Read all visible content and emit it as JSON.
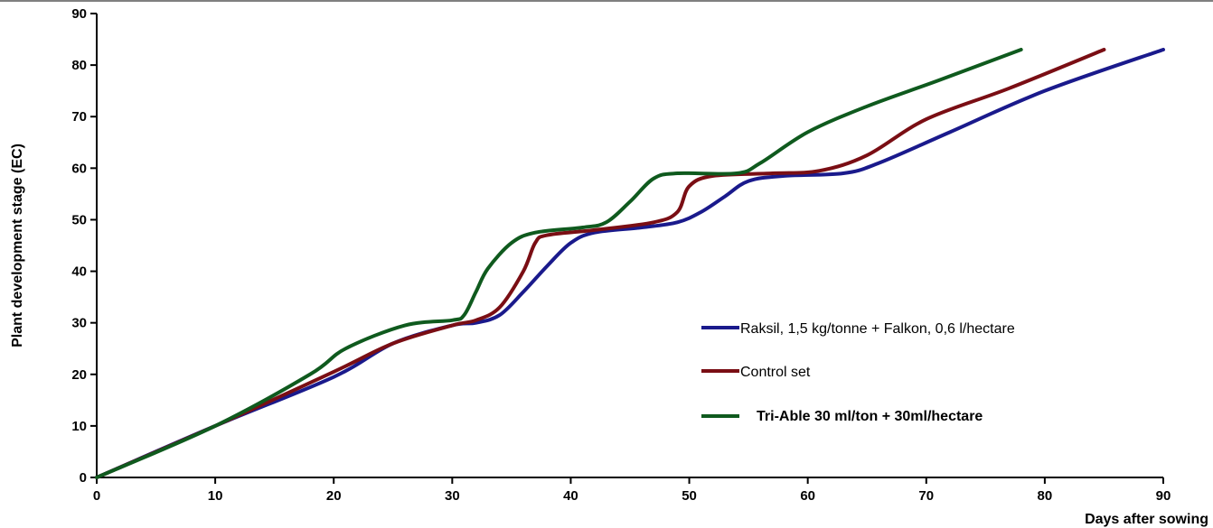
{
  "chart_data": {
    "type": "line",
    "xlabel": "Days after sowing",
    "ylabel": "Plant development stage (EC)",
    "xlim": [
      0,
      90
    ],
    "ylim": [
      0,
      90
    ],
    "x_ticks": [
      "0",
      "10",
      "20",
      "30",
      "40",
      "50",
      "60",
      "70",
      "80",
      "90"
    ],
    "y_ticks": [
      "0",
      "10",
      "20",
      "30",
      "40",
      "50",
      "60",
      "70",
      "80",
      "90"
    ],
    "grid": false,
    "legend_position": "right",
    "series": [
      {
        "name": "Raksil, 1,5 kg/tonne + Falkon, 0,6 l/hectare",
        "color": "#1a1a8c",
        "points": [
          [
            0,
            0
          ],
          [
            10,
            10
          ],
          [
            20,
            19.5
          ],
          [
            25,
            26
          ],
          [
            30,
            29.5
          ],
          [
            32,
            30
          ],
          [
            34,
            31.5
          ],
          [
            36,
            36
          ],
          [
            38,
            41
          ],
          [
            40,
            45.5
          ],
          [
            42,
            47.5
          ],
          [
            46,
            48.5
          ],
          [
            49,
            49.5
          ],
          [
            51,
            51.5
          ],
          [
            53,
            54.5
          ],
          [
            55,
            57.5
          ],
          [
            58,
            58.5
          ],
          [
            63,
            59
          ],
          [
            66,
            61
          ],
          [
            72,
            67
          ],
          [
            80,
            75
          ],
          [
            90,
            83
          ]
        ]
      },
      {
        "name": "Control set",
        "color": "#7a0e14",
        "points": [
          [
            0,
            0
          ],
          [
            10,
            10
          ],
          [
            20,
            20.5
          ],
          [
            25,
            26
          ],
          [
            30,
            29.5
          ],
          [
            32,
            30.5
          ],
          [
            34,
            33
          ],
          [
            36,
            40
          ],
          [
            37,
            45.5
          ],
          [
            38,
            47
          ],
          [
            42,
            48
          ],
          [
            47,
            49.5
          ],
          [
            49,
            51.5
          ],
          [
            50,
            56.5
          ],
          [
            52,
            58.5
          ],
          [
            57,
            59
          ],
          [
            61,
            59.5
          ],
          [
            65,
            62.5
          ],
          [
            70,
            69.5
          ],
          [
            77,
            75.5
          ],
          [
            85,
            83
          ]
        ]
      },
      {
        "name": "Tri-Able 30 ml/ton + 30ml/hectare",
        "color": "#0f5a1e",
        "points": [
          [
            0,
            0
          ],
          [
            10,
            10
          ],
          [
            18,
            20
          ],
          [
            21,
            25
          ],
          [
            26,
            29.5
          ],
          [
            30,
            30.5
          ],
          [
            31,
            31.5
          ],
          [
            32,
            36
          ],
          [
            33,
            40.5
          ],
          [
            35,
            45.5
          ],
          [
            37,
            47.5
          ],
          [
            41,
            48.5
          ],
          [
            43,
            49.5
          ],
          [
            45,
            53.5
          ],
          [
            47,
            58
          ],
          [
            49,
            59
          ],
          [
            54,
            59
          ],
          [
            56,
            61
          ],
          [
            60,
            67
          ],
          [
            65,
            72
          ],
          [
            71,
            77
          ],
          [
            78,
            83
          ]
        ]
      }
    ],
    "legend_labels": [
      "Raksil, 1,5 kg/tonne + Falkon, 0,6 l/hectare",
      "Control set",
      "Tri-Able 30 ml/ton + 30ml/hectare"
    ]
  }
}
